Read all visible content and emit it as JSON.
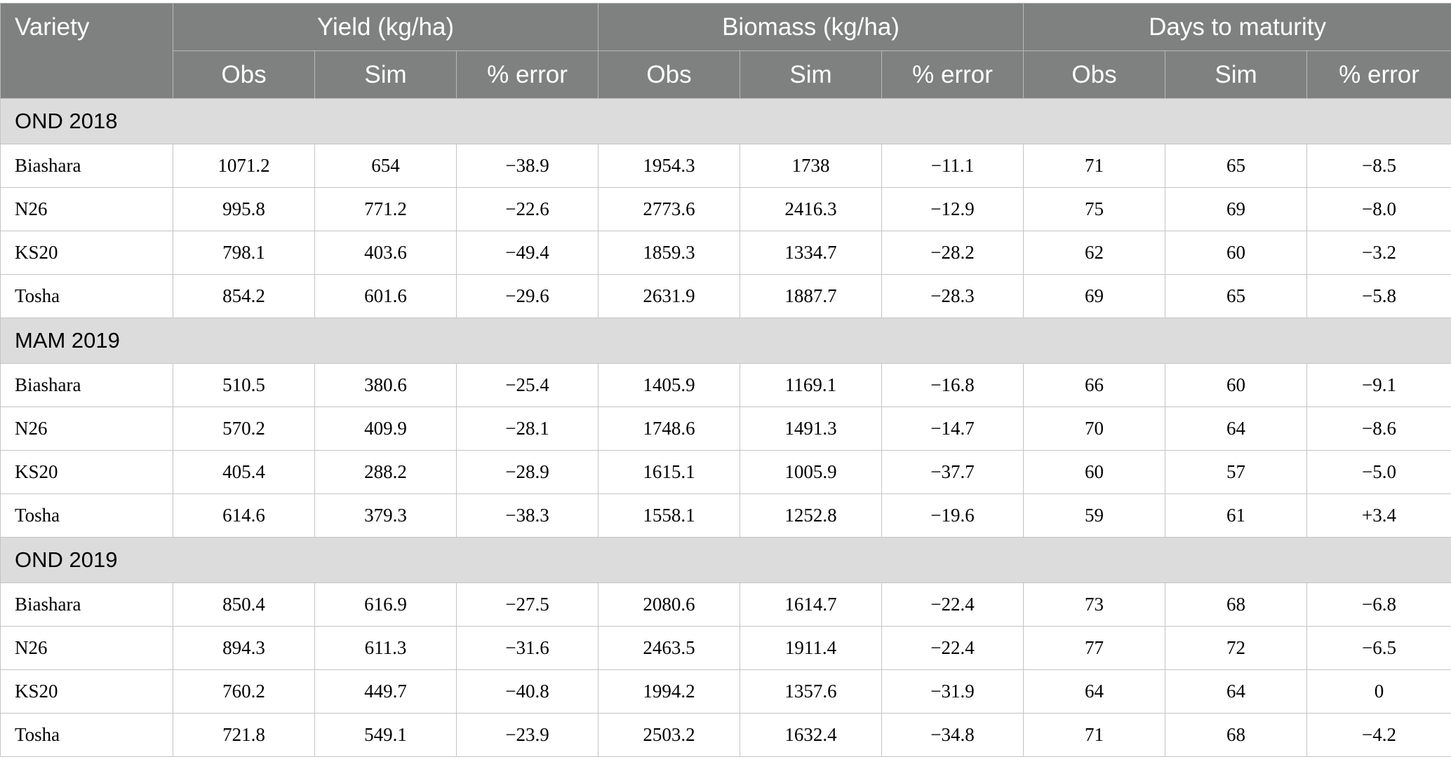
{
  "headers": {
    "variety": "Variety",
    "groups": [
      "Yield (kg/ha)",
      "Biomass (kg/ha)",
      "Days to maturity"
    ],
    "sub": [
      "Obs",
      "Sim",
      "% error",
      "Obs",
      "Sim",
      "% error",
      "Obs",
      "Sim",
      "% error"
    ]
  },
  "sections": [
    {
      "label": "OND 2018",
      "rows": [
        {
          "variety": "Biashara",
          "cells": [
            "1071.2",
            "654",
            "−38.9",
            "1954.3",
            "1738",
            "−11.1",
            "71",
            "65",
            "−8.5"
          ]
        },
        {
          "variety": "N26",
          "cells": [
            "995.8",
            "771.2",
            "−22.6",
            "2773.6",
            "2416.3",
            "−12.9",
            "75",
            "69",
            "−8.0"
          ]
        },
        {
          "variety": "KS20",
          "cells": [
            "798.1",
            "403.6",
            "−49.4",
            "1859.3",
            "1334.7",
            "−28.2",
            "62",
            "60",
            "−3.2"
          ]
        },
        {
          "variety": "Tosha",
          "cells": [
            "854.2",
            "601.6",
            "−29.6",
            "2631.9",
            "1887.7",
            "−28.3",
            "69",
            "65",
            "−5.8"
          ]
        }
      ]
    },
    {
      "label": "MAM 2019",
      "rows": [
        {
          "variety": "Biashara",
          "cells": [
            "510.5",
            "380.6",
            "−25.4",
            "1405.9",
            "1169.1",
            "−16.8",
            "66",
            "60",
            "−9.1"
          ]
        },
        {
          "variety": "N26",
          "cells": [
            "570.2",
            "409.9",
            "−28.1",
            "1748.6",
            "1491.3",
            "−14.7",
            "70",
            "64",
            "−8.6"
          ]
        },
        {
          "variety": "KS20",
          "cells": [
            "405.4",
            "288.2",
            "−28.9",
            "1615.1",
            "1005.9",
            "−37.7",
            "60",
            "57",
            "−5.0"
          ]
        },
        {
          "variety": "Tosha",
          "cells": [
            "614.6",
            "379.3",
            "−38.3",
            "1558.1",
            "1252.8",
            "−19.6",
            "59",
            "61",
            "+3.4"
          ]
        }
      ]
    },
    {
      "label": "OND 2019",
      "rows": [
        {
          "variety": "Biashara",
          "cells": [
            "850.4",
            "616.9",
            "−27.5",
            "2080.6",
            "1614.7",
            "−22.4",
            "73",
            "68",
            "−6.8"
          ]
        },
        {
          "variety": "N26",
          "cells": [
            "894.3",
            "611.3",
            "−31.6",
            "2463.5",
            "1911.4",
            "−22.4",
            "77",
            "72",
            "−6.5"
          ]
        },
        {
          "variety": "KS20",
          "cells": [
            "760.2",
            "449.7",
            "−40.8",
            "1994.2",
            "1357.6",
            "−31.9",
            "64",
            "64",
            "0"
          ]
        },
        {
          "variety": "Tosha",
          "cells": [
            "721.8",
            "549.1",
            "−23.9",
            "2503.2",
            "1632.4",
            "−34.8",
            "71",
            "68",
            "−4.2"
          ]
        }
      ]
    }
  ]
}
